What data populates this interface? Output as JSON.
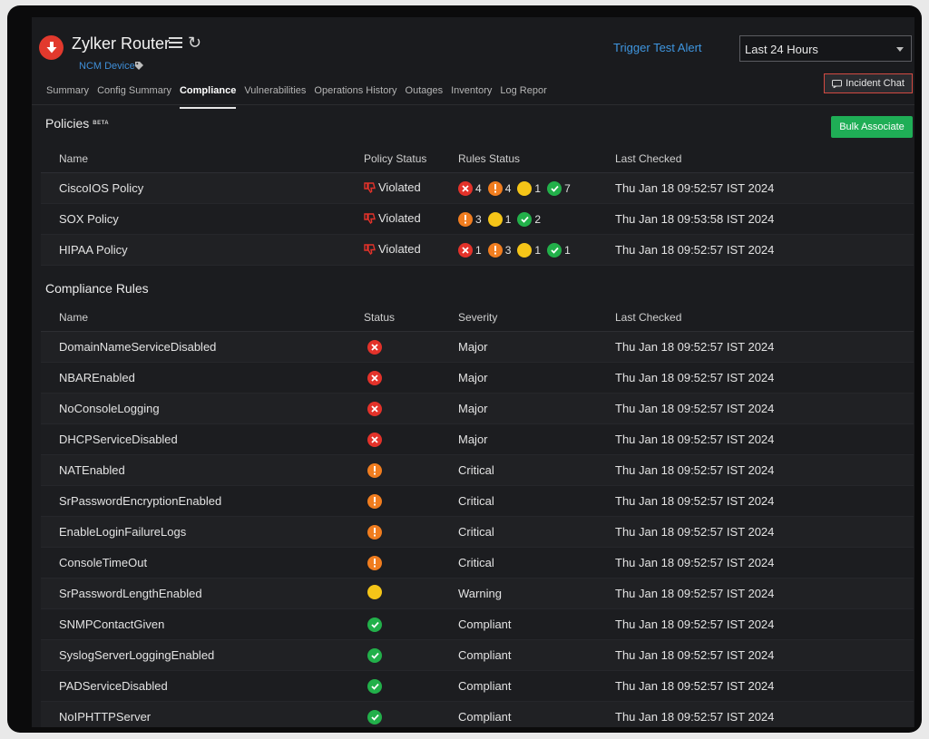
{
  "header": {
    "device_name": "Zylker Router",
    "device_type": "NCM Device",
    "trigger_label": "Trigger Test Alert",
    "time_range": "Last 24 Hours",
    "incident_chat": "Incident Chat"
  },
  "tabs": [
    {
      "label": "Summary",
      "active": false
    },
    {
      "label": "Config Summary",
      "active": false
    },
    {
      "label": "Compliance",
      "active": true
    },
    {
      "label": "Vulnerabilities",
      "active": false
    },
    {
      "label": "Operations History",
      "active": false
    },
    {
      "label": "Outages",
      "active": false
    },
    {
      "label": "Inventory",
      "active": false
    },
    {
      "label": "Log Repor",
      "active": false
    }
  ],
  "policies": {
    "title": "Policies",
    "badge": "BETA",
    "bulk_label": "Bulk Associate",
    "columns": [
      "Name",
      "Policy Status",
      "Rules Status",
      "Last Checked"
    ],
    "rows": [
      {
        "name": "CiscoIOS Policy",
        "status": "Violated",
        "rules": [
          {
            "type": "err",
            "count": "4"
          },
          {
            "type": "crit",
            "count": "4"
          },
          {
            "type": "warn",
            "count": "1"
          },
          {
            "type": "ok",
            "count": "7"
          }
        ],
        "last_checked": "Thu Jan 18 09:52:57 IST 2024"
      },
      {
        "name": "SOX Policy",
        "status": "Violated",
        "rules": [
          {
            "type": "crit",
            "count": "3"
          },
          {
            "type": "warn",
            "count": "1"
          },
          {
            "type": "ok",
            "count": "2"
          }
        ],
        "last_checked": "Thu Jan 18 09:53:58 IST 2024"
      },
      {
        "name": "HIPAA Policy",
        "status": "Violated",
        "rules": [
          {
            "type": "err",
            "count": "1"
          },
          {
            "type": "crit",
            "count": "3"
          },
          {
            "type": "warn",
            "count": "1"
          },
          {
            "type": "ok",
            "count": "1"
          }
        ],
        "last_checked": "Thu Jan 18 09:52:57 IST 2024"
      }
    ]
  },
  "rules": {
    "title": "Compliance Rules",
    "columns": [
      "Name",
      "Status",
      "Severity",
      "Last Checked"
    ],
    "rows": [
      {
        "name": "DomainNameServiceDisabled",
        "status": "err",
        "severity": "Major",
        "last_checked": "Thu Jan 18 09:52:57 IST 2024"
      },
      {
        "name": "NBAREnabled",
        "status": "err",
        "severity": "Major",
        "last_checked": "Thu Jan 18 09:52:57 IST 2024"
      },
      {
        "name": "NoConsoleLogging",
        "status": "err",
        "severity": "Major",
        "last_checked": "Thu Jan 18 09:52:57 IST 2024"
      },
      {
        "name": "DHCPServiceDisabled",
        "status": "err",
        "severity": "Major",
        "last_checked": "Thu Jan 18 09:52:57 IST 2024"
      },
      {
        "name": "NATEnabled",
        "status": "crit",
        "severity": "Critical",
        "last_checked": "Thu Jan 18 09:52:57 IST 2024"
      },
      {
        "name": "SrPasswordEncryptionEnabled",
        "status": "crit",
        "severity": "Critical",
        "last_checked": "Thu Jan 18 09:52:57 IST 2024"
      },
      {
        "name": "EnableLoginFailureLogs",
        "status": "crit",
        "severity": "Critical",
        "last_checked": "Thu Jan 18 09:52:57 IST 2024"
      },
      {
        "name": "ConsoleTimeOut",
        "status": "crit",
        "severity": "Critical",
        "last_checked": "Thu Jan 18 09:52:57 IST 2024"
      },
      {
        "name": "SrPasswordLengthEnabled",
        "status": "warn",
        "severity": "Warning",
        "last_checked": "Thu Jan 18 09:52:57 IST 2024"
      },
      {
        "name": "SNMPContactGiven",
        "status": "ok",
        "severity": "Compliant",
        "last_checked": "Thu Jan 18 09:52:57 IST 2024"
      },
      {
        "name": "SyslogServerLoggingEnabled",
        "status": "ok",
        "severity": "Compliant",
        "last_checked": "Thu Jan 18 09:52:57 IST 2024"
      },
      {
        "name": "PADServiceDisabled",
        "status": "ok",
        "severity": "Compliant",
        "last_checked": "Thu Jan 18 09:52:57 IST 2024"
      },
      {
        "name": "NoIPHTTPServer",
        "status": "ok",
        "severity": "Compliant",
        "last_checked": "Thu Jan 18 09:52:57 IST 2024"
      }
    ]
  },
  "icons": {
    "device": "down-arrow-icon",
    "menu": "hamburger-menu-icon",
    "refresh": "refresh-icon",
    "tag": "tag-icon",
    "chat": "chat-icon",
    "violated": "thumbs-down-icon",
    "status_err": "error-x-icon",
    "status_crit": "critical-exclamation-icon",
    "status_warn": "warning-dot-icon",
    "status_ok": "check-icon"
  },
  "colors": {
    "error": "#e3322a",
    "critical": "#f07d1f",
    "warning": "#f5c518",
    "ok": "#22b04a",
    "link": "#3f96e0",
    "primary_button": "#1fae56"
  }
}
